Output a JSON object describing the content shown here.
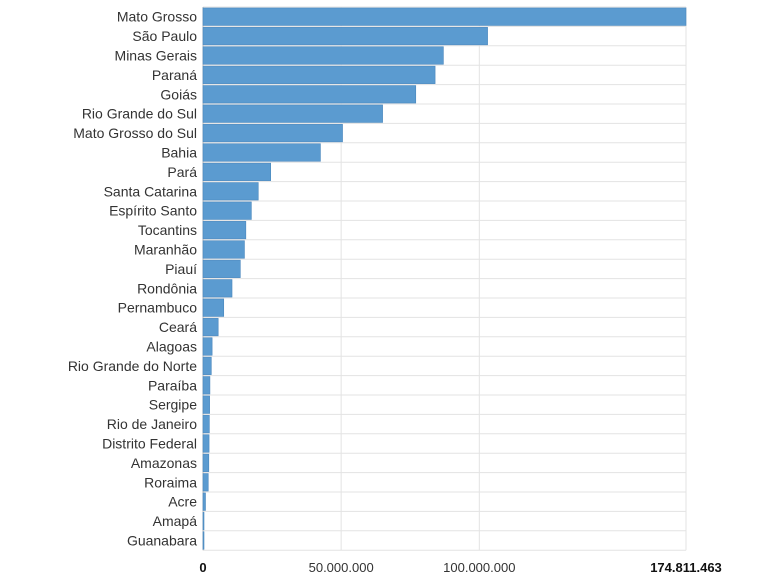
{
  "chart_data": {
    "type": "bar",
    "orientation": "horizontal",
    "categories": [
      "Mato Grosso",
      "São Paulo",
      "Minas Gerais",
      "Paraná",
      "Goiás",
      "Rio Grande do Sul",
      "Mato Grosso do Sul",
      "Bahia",
      "Pará",
      "Santa Catarina",
      "Espírito Santo",
      "Tocantins",
      "Maranhão",
      "Piauí",
      "Rondônia",
      "Pernambuco",
      "Ceará",
      "Alagoas",
      "Rio Grande do Norte",
      "Paraíba",
      "Sergipe",
      "Rio de Janeiro",
      "Distrito Federal",
      "Amazonas",
      "Roraima",
      "Acre",
      "Amapá",
      "Guanabara"
    ],
    "values": [
      174811463,
      103000000,
      87000000,
      84000000,
      77000000,
      65000000,
      50500000,
      42500000,
      24500000,
      20000000,
      17500000,
      15500000,
      15000000,
      13500000,
      10500000,
      7500000,
      5500000,
      3300000,
      3000000,
      2500000,
      2400000,
      2300000,
      2200000,
      2100000,
      1900000,
      900000,
      350000,
      250000
    ],
    "xlim": [
      0,
      174811463
    ],
    "xticks": [
      0,
      50000000,
      100000000,
      174811463
    ],
    "xtick_labels": [
      "0",
      "50.000.000",
      "100.000.000",
      "174.811.463"
    ],
    "grid": true,
    "colors": {
      "bar": "#5b9bd0",
      "bar_border": "#4a87bd",
      "grid": "#e3e3e3",
      "axis": "#bbbbbb"
    }
  }
}
